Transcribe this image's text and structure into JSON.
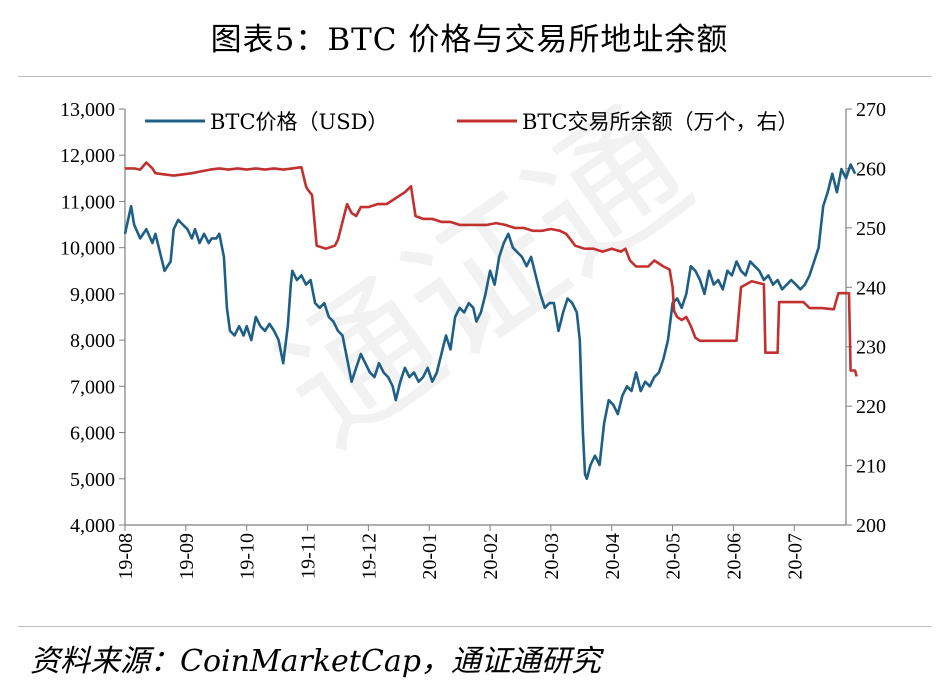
{
  "title": "图表5：BTC 价格与交易所地址余额",
  "source": "资料来源：CoinMarketCap，通证通研究",
  "chart_data": {
    "type": "line",
    "x_tick_labels": [
      "19-08",
      "19-09",
      "19-10",
      "19-11",
      "19-12",
      "20-01",
      "20-02",
      "20-03",
      "20-04",
      "20-05",
      "20-06",
      "20-07"
    ],
    "ylim_left": [
      4000,
      13000
    ],
    "y_ticks_left": [
      "4,000",
      "5,000",
      "6,000",
      "7,000",
      "8,000",
      "9,000",
      "10,000",
      "11,000",
      "12,000",
      "13,000"
    ],
    "ylim_right": [
      200,
      270
    ],
    "y_ticks_right": [
      "200",
      "210",
      "220",
      "230",
      "240",
      "250",
      "260",
      "270"
    ],
    "series": [
      {
        "name": "BTC价格（USD）",
        "axis": "left",
        "color": "#1f5f85",
        "points": [
          [
            0.0,
            10300
          ],
          [
            0.2,
            10900
          ],
          [
            0.3,
            10500
          ],
          [
            0.5,
            10200
          ],
          [
            0.7,
            10400
          ],
          [
            0.9,
            10100
          ],
          [
            1.0,
            10300
          ],
          [
            1.15,
            9900
          ],
          [
            1.3,
            9500
          ],
          [
            1.5,
            9700
          ],
          [
            1.6,
            10400
          ],
          [
            1.75,
            10600
          ],
          [
            1.9,
            10500
          ],
          [
            2.05,
            10400
          ],
          [
            2.2,
            10200
          ],
          [
            2.3,
            10400
          ],
          [
            2.45,
            10100
          ],
          [
            2.6,
            10300
          ],
          [
            2.75,
            10100
          ],
          [
            2.85,
            10200
          ],
          [
            3.0,
            10200
          ],
          [
            3.1,
            10300
          ],
          [
            3.25,
            9800
          ],
          [
            3.35,
            8700
          ],
          [
            3.45,
            8200
          ],
          [
            3.6,
            8100
          ],
          [
            3.75,
            8300
          ],
          [
            3.9,
            8100
          ],
          [
            4.0,
            8300
          ],
          [
            4.15,
            8000
          ],
          [
            4.3,
            8500
          ],
          [
            4.45,
            8300
          ],
          [
            4.6,
            8200
          ],
          [
            4.75,
            8350
          ],
          [
            4.9,
            8200
          ],
          [
            5.05,
            8000
          ],
          [
            5.2,
            7500
          ],
          [
            5.35,
            8300
          ],
          [
            5.45,
            9200
          ],
          [
            5.5,
            9500
          ],
          [
            5.65,
            9300
          ],
          [
            5.8,
            9400
          ],
          [
            5.95,
            9200
          ],
          [
            6.1,
            9300
          ],
          [
            6.25,
            8800
          ],
          [
            6.4,
            8700
          ],
          [
            6.55,
            8800
          ],
          [
            6.7,
            8500
          ],
          [
            6.85,
            8400
          ],
          [
            7.0,
            8200
          ],
          [
            7.15,
            8100
          ],
          [
            7.3,
            7600
          ],
          [
            7.45,
            7100
          ],
          [
            7.6,
            7400
          ],
          [
            7.75,
            7700
          ],
          [
            7.9,
            7500
          ],
          [
            8.05,
            7300
          ],
          [
            8.2,
            7200
          ],
          [
            8.35,
            7500
          ],
          [
            8.5,
            7300
          ],
          [
            8.65,
            7200
          ],
          [
            8.8,
            7000
          ],
          [
            8.9,
            6700
          ],
          [
            9.05,
            7100
          ],
          [
            9.2,
            7400
          ],
          [
            9.35,
            7200
          ],
          [
            9.5,
            7300
          ],
          [
            9.65,
            7100
          ],
          [
            9.8,
            7200
          ],
          [
            9.95,
            7400
          ],
          [
            10.1,
            7100
          ],
          [
            10.25,
            7300
          ],
          [
            10.4,
            7700
          ],
          [
            10.55,
            8100
          ],
          [
            10.7,
            7800
          ],
          [
            10.85,
            8500
          ],
          [
            11.0,
            8700
          ],
          [
            11.15,
            8600
          ],
          [
            11.3,
            8800
          ],
          [
            11.45,
            8700
          ],
          [
            11.55,
            8400
          ],
          [
            11.7,
            8600
          ],
          [
            11.85,
            9000
          ],
          [
            12.0,
            9500
          ],
          [
            12.15,
            9200
          ],
          [
            12.3,
            9800
          ],
          [
            12.45,
            10100
          ],
          [
            12.6,
            10300
          ],
          [
            12.75,
            10000
          ],
          [
            12.9,
            9900
          ],
          [
            13.05,
            9800
          ],
          [
            13.2,
            9600
          ],
          [
            13.35,
            9800
          ],
          [
            13.5,
            9400
          ],
          [
            13.65,
            9000
          ],
          [
            13.8,
            8700
          ],
          [
            13.95,
            8800
          ],
          [
            14.1,
            8800
          ],
          [
            14.25,
            8200
          ],
          [
            14.4,
            8600
          ],
          [
            14.55,
            8900
          ],
          [
            14.7,
            8800
          ],
          [
            14.85,
            8600
          ],
          [
            14.95,
            8000
          ],
          [
            15.0,
            7000
          ],
          [
            15.05,
            6000
          ],
          [
            15.12,
            5100
          ],
          [
            15.18,
            5000
          ],
          [
            15.3,
            5300
          ],
          [
            15.45,
            5500
          ],
          [
            15.6,
            5300
          ],
          [
            15.75,
            6200
          ],
          [
            15.9,
            6700
          ],
          [
            16.05,
            6600
          ],
          [
            16.2,
            6400
          ],
          [
            16.35,
            6800
          ],
          [
            16.5,
            7000
          ],
          [
            16.65,
            6900
          ],
          [
            16.8,
            7300
          ],
          [
            16.95,
            6900
          ],
          [
            17.1,
            7100
          ],
          [
            17.25,
            7000
          ],
          [
            17.4,
            7200
          ],
          [
            17.55,
            7300
          ],
          [
            17.7,
            7600
          ],
          [
            17.85,
            8000
          ],
          [
            18.0,
            8800
          ],
          [
            18.15,
            8900
          ],
          [
            18.3,
            8700
          ],
          [
            18.45,
            9000
          ],
          [
            18.6,
            9600
          ],
          [
            18.75,
            9500
          ],
          [
            18.9,
            9300
          ],
          [
            19.05,
            9000
          ],
          [
            19.2,
            9500
          ],
          [
            19.35,
            9200
          ],
          [
            19.5,
            9300
          ],
          [
            19.65,
            9100
          ],
          [
            19.8,
            9500
          ],
          [
            19.95,
            9400
          ],
          [
            20.1,
            9700
          ],
          [
            20.25,
            9500
          ],
          [
            20.4,
            9400
          ],
          [
            20.55,
            9700
          ],
          [
            20.7,
            9600
          ],
          [
            20.85,
            9500
          ],
          [
            21.0,
            9300
          ],
          [
            21.15,
            9400
          ],
          [
            21.3,
            9200
          ],
          [
            21.45,
            9300
          ],
          [
            21.6,
            9100
          ],
          [
            21.75,
            9200
          ],
          [
            21.9,
            9300
          ],
          [
            22.05,
            9200
          ],
          [
            22.2,
            9100
          ],
          [
            22.35,
            9200
          ],
          [
            22.5,
            9400
          ],
          [
            22.65,
            9700
          ],
          [
            22.8,
            10000
          ],
          [
            22.95,
            10900
          ],
          [
            23.1,
            11200
          ],
          [
            23.25,
            11600
          ],
          [
            23.4,
            11200
          ],
          [
            23.55,
            11700
          ],
          [
            23.7,
            11500
          ],
          [
            23.85,
            11800
          ],
          [
            24.0,
            11600
          ]
        ]
      },
      {
        "name": "BTC交易所余额（万个，右）",
        "axis": "right",
        "color": "#c0312f",
        "points": [
          [
            0.0,
            260
          ],
          [
            0.3,
            260
          ],
          [
            0.5,
            259.8
          ],
          [
            0.7,
            261
          ],
          [
            0.9,
            260
          ],
          [
            1.0,
            259.2
          ],
          [
            1.3,
            259.0
          ],
          [
            1.6,
            258.8
          ],
          [
            1.9,
            259.0
          ],
          [
            2.2,
            259.2
          ],
          [
            2.5,
            259.5
          ],
          [
            2.8,
            259.8
          ],
          [
            3.1,
            260.0
          ],
          [
            3.4,
            259.8
          ],
          [
            3.7,
            260.0
          ],
          [
            4.0,
            259.8
          ],
          [
            4.3,
            260.0
          ],
          [
            4.6,
            259.8
          ],
          [
            4.9,
            260.0
          ],
          [
            5.2,
            259.8
          ],
          [
            5.5,
            260.0
          ],
          [
            5.8,
            260.2
          ],
          [
            5.95,
            257
          ],
          [
            6.0,
            256.5
          ],
          [
            6.15,
            255.5
          ],
          [
            6.3,
            247
          ],
          [
            6.6,
            246.5
          ],
          [
            6.9,
            247
          ],
          [
            7.0,
            248
          ],
          [
            7.15,
            251
          ],
          [
            7.3,
            254
          ],
          [
            7.45,
            252.5
          ],
          [
            7.6,
            252
          ],
          [
            7.75,
            253.5
          ],
          [
            8.0,
            253.5
          ],
          [
            8.3,
            254
          ],
          [
            8.6,
            254
          ],
          [
            8.9,
            255
          ],
          [
            9.2,
            256
          ],
          [
            9.4,
            257
          ],
          [
            9.55,
            252
          ],
          [
            9.8,
            251.5
          ],
          [
            10.1,
            251.5
          ],
          [
            10.4,
            251
          ],
          [
            10.7,
            251
          ],
          [
            11.0,
            250.5
          ],
          [
            11.3,
            250.5
          ],
          [
            11.6,
            250.5
          ],
          [
            11.9,
            250.5
          ],
          [
            12.2,
            250.8
          ],
          [
            12.5,
            250.5
          ],
          [
            12.8,
            250
          ],
          [
            13.1,
            250
          ],
          [
            13.4,
            249.5
          ],
          [
            13.7,
            249.5
          ],
          [
            14.0,
            249.8
          ],
          [
            14.3,
            249.5
          ],
          [
            14.5,
            249
          ],
          [
            14.65,
            248
          ],
          [
            14.8,
            247
          ],
          [
            15.1,
            246.5
          ],
          [
            15.4,
            246.5
          ],
          [
            15.7,
            246
          ],
          [
            16.0,
            246.5
          ],
          [
            16.3,
            246
          ],
          [
            16.45,
            246.5
          ],
          [
            16.6,
            244.5
          ],
          [
            16.8,
            243.5
          ],
          [
            17.0,
            243.5
          ],
          [
            17.2,
            243.5
          ],
          [
            17.4,
            244.5
          ],
          [
            17.55,
            244
          ],
          [
            17.7,
            243.5
          ],
          [
            17.9,
            243
          ],
          [
            18.0,
            240
          ],
          [
            18.05,
            236
          ],
          [
            18.15,
            235
          ],
          [
            18.3,
            234.5
          ],
          [
            18.45,
            235
          ],
          [
            18.6,
            233.5
          ],
          [
            18.75,
            231.5
          ],
          [
            18.9,
            231
          ],
          [
            19.2,
            231
          ],
          [
            19.5,
            231
          ],
          [
            19.8,
            231
          ],
          [
            20.1,
            231
          ],
          [
            20.25,
            240
          ],
          [
            20.6,
            241
          ],
          [
            21.0,
            240.5
          ],
          [
            21.05,
            229
          ],
          [
            21.3,
            229
          ],
          [
            21.45,
            229
          ],
          [
            21.5,
            237.5
          ],
          [
            22.0,
            237.5
          ],
          [
            22.3,
            237.5
          ],
          [
            22.5,
            236.5
          ],
          [
            22.9,
            236.5
          ],
          [
            23.3,
            236.3
          ],
          [
            23.45,
            239
          ],
          [
            23.7,
            239
          ],
          [
            23.8,
            239
          ],
          [
            23.85,
            226
          ],
          [
            24.0,
            226
          ],
          [
            24.05,
            225
          ]
        ]
      }
    ]
  }
}
